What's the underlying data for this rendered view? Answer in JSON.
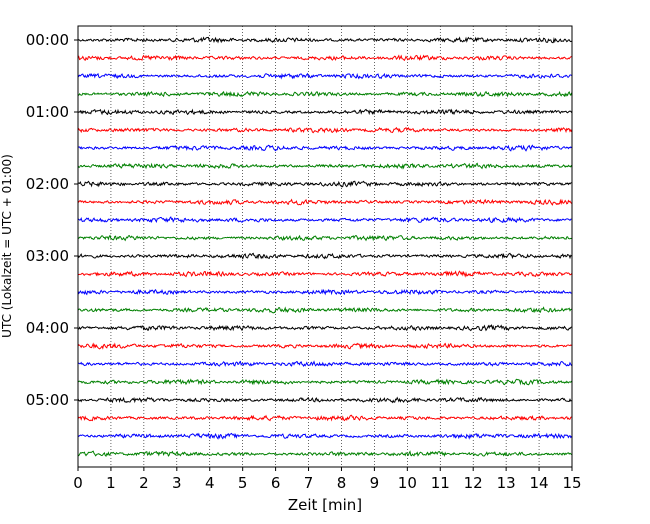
{
  "chart_data": {
    "type": "line",
    "subtype": "helicorder (seismogram drum plot)",
    "xlabel": "Zeit  [min]",
    "ylabel": "UTC (Lokalzeit = UTC + 01:00)",
    "xlim": [
      0,
      15
    ],
    "x_ticks": [
      "0",
      "1",
      "2",
      "3",
      "4",
      "5",
      "6",
      "7",
      "8",
      "9",
      "10",
      "11",
      "12",
      "13",
      "14",
      "15"
    ],
    "y_tick_labels": [
      "00:00",
      "01:00",
      "02:00",
      "03:00",
      "04:00",
      "05:00"
    ],
    "trace_interval_minutes": 15,
    "trace_count": 24,
    "trace_start_times_utc": [
      "00:00",
      "00:15",
      "00:30",
      "00:45",
      "01:00",
      "01:15",
      "01:30",
      "01:45",
      "02:00",
      "02:15",
      "02:30",
      "02:45",
      "03:00",
      "03:15",
      "03:30",
      "03:45",
      "04:00",
      "04:15",
      "04:30",
      "04:45",
      "05:00",
      "05:15",
      "05:30",
      "05:45"
    ],
    "trace_color_cycle": [
      "#000000",
      "#ff0000",
      "#0000ff",
      "#008000"
    ],
    "grid": "vertical dotted at each minute",
    "legend": "none"
  }
}
